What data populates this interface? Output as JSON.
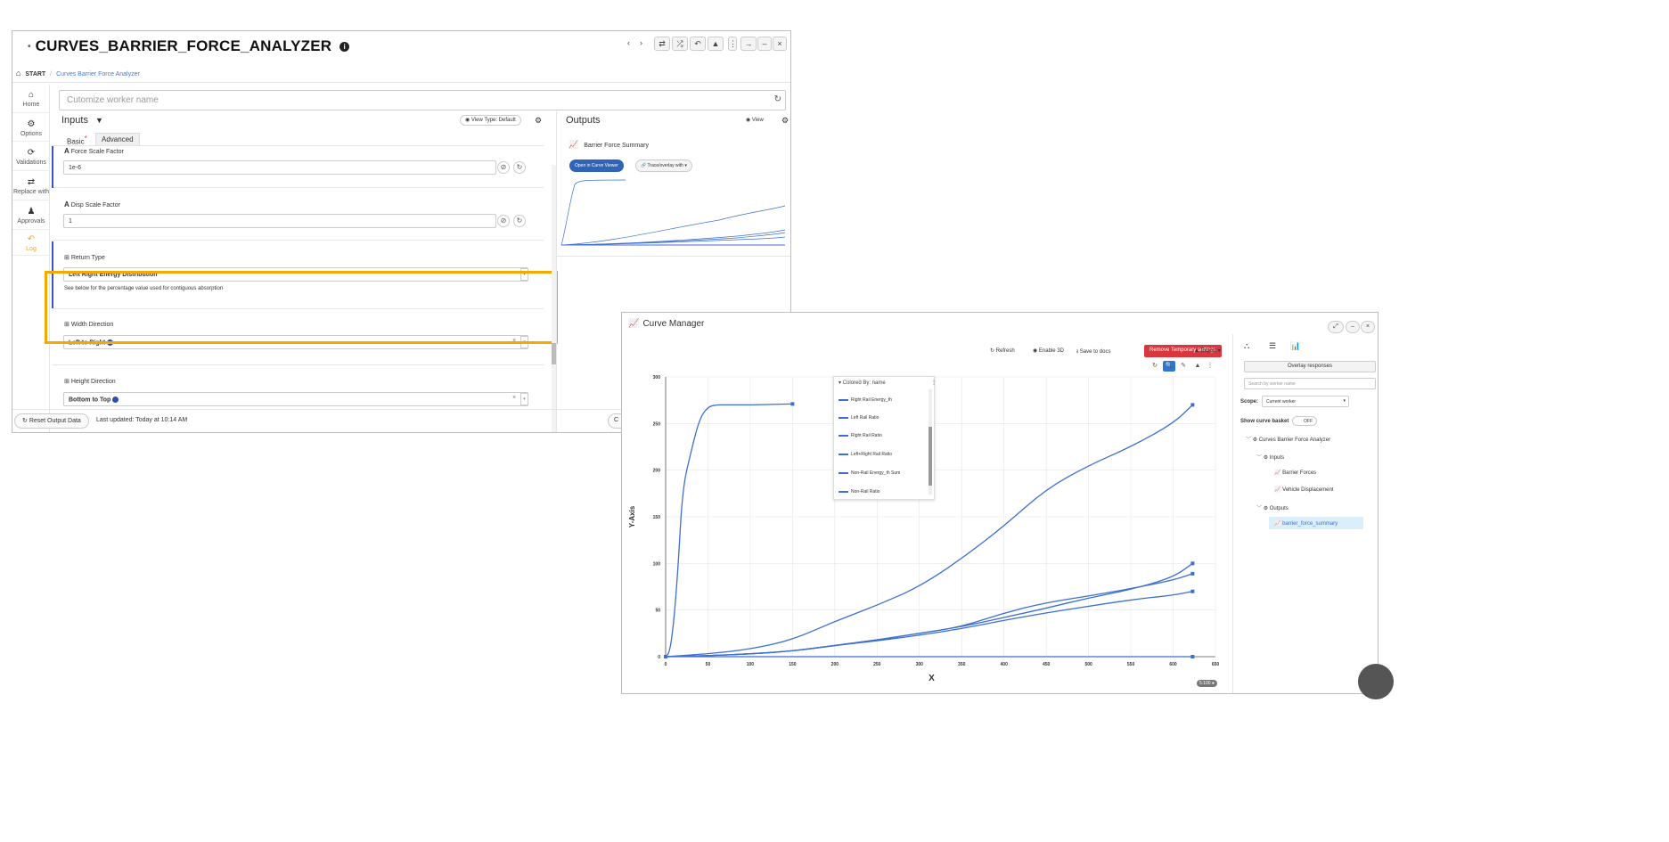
{
  "worker": {
    "title": "CURVES_BARRIER_FORCE_ANALYZER",
    "title_info_icon": "info-icon",
    "toolbar_icons": [
      "chevron-left-icon",
      "chevron-right-icon",
      "swap-icon",
      "shuffle-icon",
      "undo-icon",
      "upload-icon",
      "more-vert-icon",
      "arrow-right-icon",
      "minimize-icon",
      "close-icon"
    ],
    "breadcrumb": {
      "home": "START",
      "sep": "/",
      "current": "Curves Barrier Force Analyzer"
    },
    "sidebar": [
      {
        "label": "Home",
        "icon": "home-icon",
        "glyph": "🏠"
      },
      {
        "label": "Options",
        "icon": "gear-icon",
        "glyph": "⚙"
      },
      {
        "label": "Validations",
        "icon": "validations-icon",
        "glyph": "⟳"
      },
      {
        "label": "Replace with",
        "icon": "swap-icon",
        "glyph": "⇄"
      },
      {
        "label": "Approvals",
        "icon": "approvals-icon",
        "glyph": "👤"
      },
      {
        "label": "Log",
        "icon": "history-icon",
        "glyph": "↶"
      }
    ],
    "name_placeholder": "Cutomize worker name",
    "inputs": {
      "heading": "Inputs",
      "view_type": "View Type: Default",
      "tabs": [
        "Basic",
        "Advanced"
      ],
      "force_scale": {
        "label": "Force Scale Factor",
        "value": "1e-6"
      },
      "disp_scale": {
        "label": "Disp Scale Factor",
        "value": "1"
      },
      "return_type": {
        "label": "Return Type",
        "value": "Left Right Energy Distribution",
        "note": "See below for the percentage value used for contiguous absorption"
      },
      "width_direction": {
        "label": "Width Direction",
        "value": "Left to Right"
      },
      "height_direction": {
        "label": "Height Direction",
        "value": "Bottom to Top"
      }
    },
    "outputs": {
      "heading": "Outputs",
      "view": "View",
      "summary_title": "Barrier Force Summary",
      "open_btn": "Open in Curve Viewer",
      "trace_btn": "Trace/overlay with"
    },
    "footer": {
      "reset": "Reset Output Data",
      "updated": "Last updated: Today at 10:14 AM"
    }
  },
  "curve_manager": {
    "title": "Curve Manager",
    "toolbar": {
      "refresh": "Refresh",
      "enable3d": "Enable 3D",
      "save": "Save to docs",
      "remove": "Remove Temporary settings",
      "export": "Export"
    },
    "legend": {
      "header": "Colored By: name",
      "items": [
        "Right Rail Energy_th",
        "Left Rail Ratio",
        "Right Rail Ratio",
        "Left+Right Rail Ratio",
        "Non-Rail Energy_th Sum",
        "Non-Rail Ratio"
      ]
    },
    "zoom_badge": "5:100",
    "right_pane": {
      "overlay_btn": "Overlay responses",
      "search_placeholder": "Search by worker name",
      "scope_label": "Scope:",
      "scope_value": "Current worker",
      "basket_label": "Show curve basket",
      "basket_toggle": "OFF",
      "tree": {
        "root": "Curves Barrier Force Analyzer",
        "inputs": "Inputs",
        "barrier_forces": "Barrier Forces",
        "vehicle_disp": "Vehicle Displacement",
        "outputs": "Outputs",
        "summary": "barrier_force_summary"
      }
    }
  },
  "chart_data": {
    "type": "line",
    "xlabel": "X",
    "ylabel": "Y-Axis",
    "xlim": [
      0,
      650
    ],
    "ylim": [
      0,
      300
    ],
    "xticks": [
      0,
      50,
      100,
      150,
      200,
      250,
      300,
      350,
      400,
      450,
      500,
      550,
      600,
      650
    ],
    "yticks": [
      0,
      50,
      100,
      150,
      200,
      250,
      300
    ],
    "grid": true,
    "series": [
      {
        "x": [
          0,
          5,
          10,
          15,
          20,
          30,
          40,
          50,
          60,
          70,
          100,
          150
        ],
        "y": [
          0,
          5,
          40,
          100,
          180,
          220,
          255,
          268,
          270,
          270,
          270,
          271
        ]
      },
      {
        "x": [
          0,
          50,
          100,
          150,
          200,
          250,
          300,
          350,
          400,
          450,
          500,
          550,
          600,
          623
        ],
        "y": [
          0,
          3,
          8,
          18,
          38,
          55,
          75,
          105,
          140,
          180,
          205,
          225,
          250,
          270
        ]
      },
      {
        "x": [
          0,
          50,
          100,
          150,
          200,
          250,
          300,
          350,
          400,
          450,
          500,
          550,
          600,
          623
        ],
        "y": [
          0,
          1,
          3,
          6,
          12,
          18,
          25,
          32,
          42,
          52,
          63,
          72,
          85,
          100
        ]
      },
      {
        "x": [
          0,
          50,
          100,
          150,
          200,
          250,
          300,
          350,
          400,
          450,
          500,
          550,
          600,
          623
        ],
        "y": [
          0,
          1,
          3,
          6,
          12,
          18,
          25,
          32,
          47,
          58,
          65,
          73,
          82,
          89
        ]
      },
      {
        "x": [
          0,
          50,
          100,
          150,
          200,
          250,
          300,
          350,
          400,
          450,
          500,
          550,
          600,
          623
        ],
        "y": [
          0,
          1,
          3,
          6,
          12,
          17,
          23,
          30,
          39,
          47,
          54,
          61,
          66,
          70
        ]
      },
      {
        "x": [
          0,
          623
        ],
        "y": [
          0,
          0
        ]
      }
    ],
    "color": "#3c6fd0"
  }
}
